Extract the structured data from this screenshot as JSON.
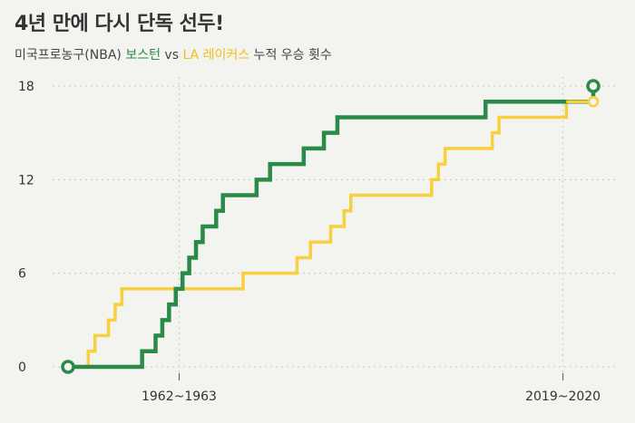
{
  "header": {
    "title": "4년 만에 다시 단독 선두!",
    "subtitle_prefix": "미국프로농구(NBA) ",
    "subtitle_boston": "보스턴",
    "subtitle_vs": " vs ",
    "subtitle_lakers": "LA 레이커스",
    "subtitle_suffix": " 누적 우승 횟수"
  },
  "chart_data": {
    "type": "line",
    "step": true,
    "title": "4년 만에 다시 단독 선두!",
    "subtitle": "미국프로농구(NBA) 보스턴 vs LA 레이커스 누적 우승 횟수",
    "xlim": [
      1946,
      2022
    ],
    "ylim": [
      0,
      18
    ],
    "yticks": [
      0,
      6,
      12,
      18
    ],
    "xtick_labels": [
      {
        "year": 1962.5,
        "label": "1962~1963"
      },
      {
        "year": 2019.5,
        "label": "2019~2020"
      }
    ],
    "grid": "dotted",
    "colors": {
      "boston": "#2a8a47",
      "lakers": "#f8cf3f"
    },
    "series": [
      {
        "key": "boston",
        "name": "보스턴",
        "color": "#2a8a47",
        "points": [
          [
            1946,
            0
          ],
          [
            1957,
            1
          ],
          [
            1959,
            2
          ],
          [
            1960,
            3
          ],
          [
            1961,
            4
          ],
          [
            1962,
            5
          ],
          [
            1963,
            6
          ],
          [
            1964,
            7
          ],
          [
            1965,
            8
          ],
          [
            1966,
            9
          ],
          [
            1968,
            10
          ],
          [
            1969,
            11
          ],
          [
            1974,
            12
          ],
          [
            1976,
            13
          ],
          [
            1981,
            14
          ],
          [
            1984,
            15
          ],
          [
            1986,
            16
          ],
          [
            2008,
            17
          ],
          [
            2024,
            18
          ]
        ]
      },
      {
        "key": "lakers",
        "name": "LA 레이커스",
        "color": "#f8cf3f",
        "points": [
          [
            1946,
            0
          ],
          [
            1949,
            1
          ],
          [
            1950,
            2
          ],
          [
            1952,
            3
          ],
          [
            1953,
            4
          ],
          [
            1954,
            5
          ],
          [
            1972,
            6
          ],
          [
            1980,
            7
          ],
          [
            1982,
            8
          ],
          [
            1985,
            9
          ],
          [
            1987,
            10
          ],
          [
            1988,
            11
          ],
          [
            2000,
            12
          ],
          [
            2001,
            13
          ],
          [
            2002,
            14
          ],
          [
            2009,
            15
          ],
          [
            2010,
            16
          ],
          [
            2020,
            17
          ]
        ]
      }
    ]
  }
}
